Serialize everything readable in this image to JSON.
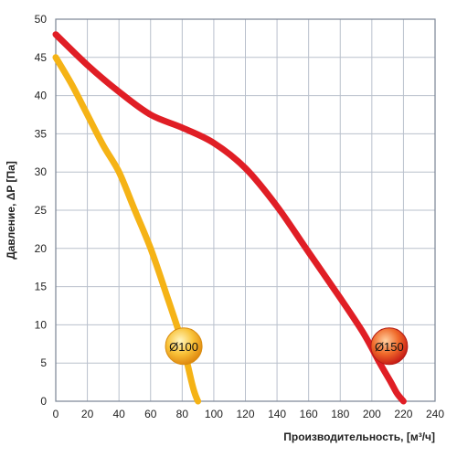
{
  "chart_data": {
    "type": "line",
    "title": "",
    "xlabel": "Производительность,  [м³/ч]",
    "ylabel": "Давление, ΔP [Па]",
    "xlim": [
      0,
      240
    ],
    "ylim": [
      0,
      50
    ],
    "x_ticks": [
      "0",
      "20",
      "40",
      "60",
      "80",
      "100",
      "120",
      "140",
      "160",
      "180",
      "200",
      "220",
      "240"
    ],
    "y_ticks": [
      "0",
      "5",
      "10",
      "15",
      "20",
      "25",
      "30",
      "35",
      "40",
      "45",
      "50"
    ],
    "grid": true,
    "series": [
      {
        "name": "Ø100",
        "color": "#f5b316",
        "x": [
          0,
          10,
          20,
          30,
          40,
          50,
          60,
          70,
          78,
          82,
          86,
          88,
          90
        ],
        "y": [
          45,
          41.5,
          37.5,
          33.5,
          30,
          25,
          20,
          14,
          9,
          6,
          2.5,
          1,
          0
        ]
      },
      {
        "name": "Ø150",
        "color": "#e01e25",
        "x": [
          0,
          20,
          40,
          60,
          80,
          100,
          120,
          140,
          160,
          180,
          195,
          205,
          212,
          216,
          220
        ],
        "y": [
          48,
          44,
          40.5,
          37.5,
          35.8,
          33.8,
          30.5,
          25.5,
          19.5,
          13.5,
          8.8,
          5,
          2.5,
          1,
          0
        ]
      }
    ]
  }
}
